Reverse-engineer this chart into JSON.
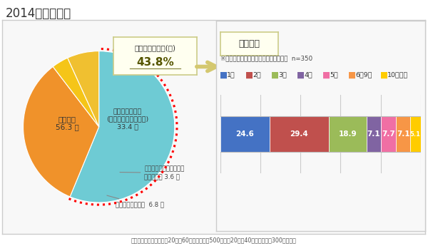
{
  "title": "2014年のお歳暮",
  "pie_values": [
    56.3,
    33.4,
    3.6,
    6.8
  ],
  "pie_colors": [
    "#6ecbd4",
    "#f0922a",
    "#f5c518",
    "#f0c030"
  ],
  "label_nooku": "贈らない\n56.3 ％",
  "label_okutta": "お歳暮を贈った\n(すべて贈り終わった)\n33.4 ％",
  "label_ann1": "贈ったが、これから贈る\n相手もいる 3.6 ％",
  "label_ann2": "これから贈る予定  6.8 ％",
  "callout_title": "お歳暮を贈る人(計)",
  "callout_value": "43.8%",
  "bar_values": [
    24.6,
    29.4,
    18.9,
    7.1,
    7.7,
    7.1,
    5.1
  ],
  "bar_colors": [
    "#4472c4",
    "#c0504d",
    "#9bbb59",
    "#8064a2",
    "#f06fa4",
    "#f79646",
    "#ffcc00"
  ],
  "bar_labels": [
    "1件",
    "2件",
    "3件",
    "4件",
    "5件",
    "6～9件",
    "10件以上"
  ],
  "bar_title": "贈る件数",
  "bar_subtitle": "※お歳暮を贈った、または贈る予定の人  n=350",
  "footer": "（マーシュ調べ）全国の20代～60代の既婚女性500人と、20代～40代の未婚女性300人の回答",
  "bg_color": "#ffffff"
}
